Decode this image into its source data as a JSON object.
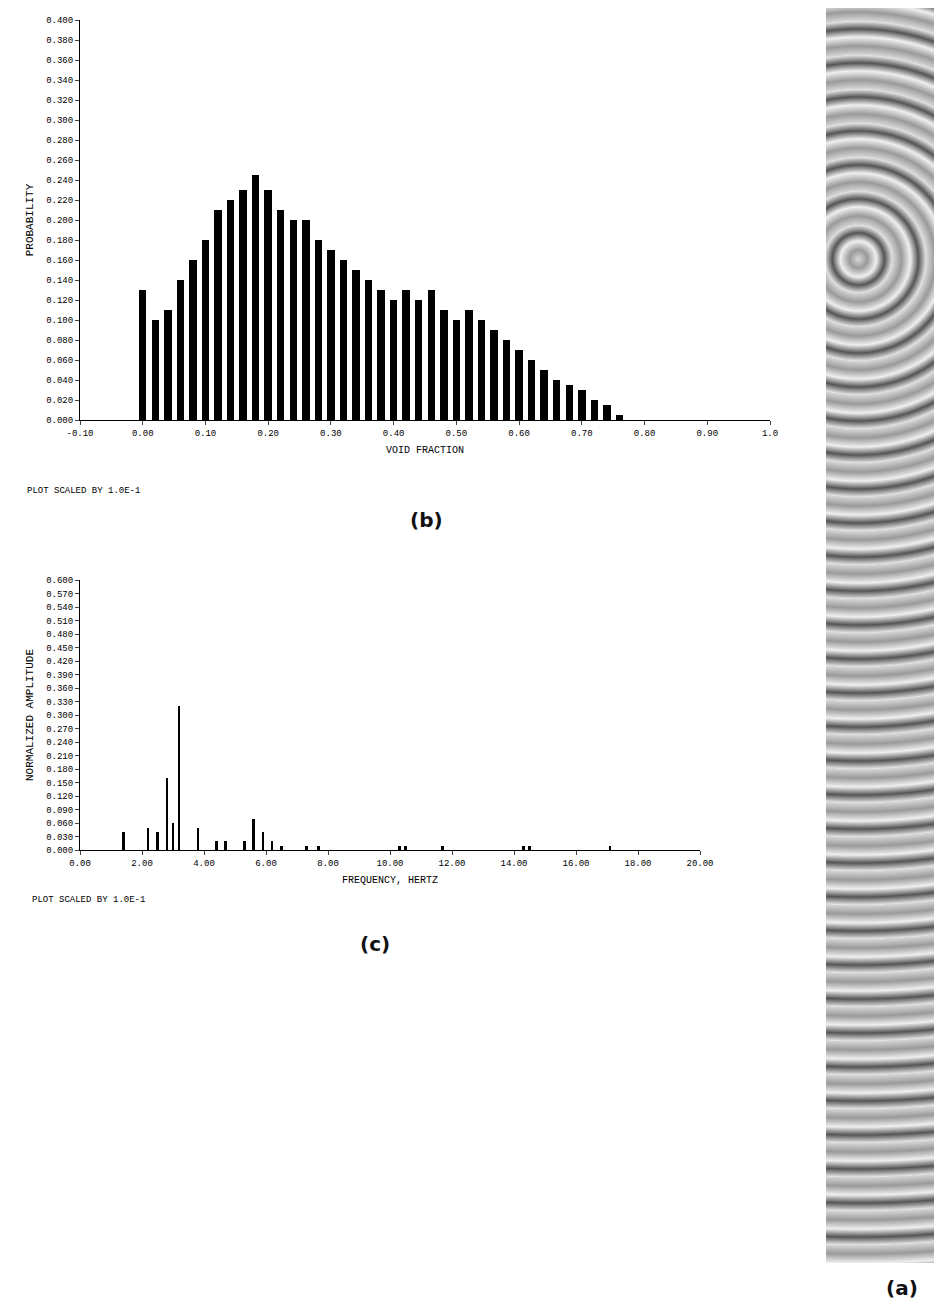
{
  "chart_data": [
    {
      "type": "bar",
      "panel": "(b)",
      "x_label": "VOID FRACTION",
      "y_label": "PROBABILITY",
      "annotations": [
        "PLOT SCALED BY 1.0E-1"
      ],
      "x": [
        0.0,
        0.02,
        0.04,
        0.06,
        0.08,
        0.1,
        0.12,
        0.14,
        0.16,
        0.18,
        0.2,
        0.22,
        0.24,
        0.26,
        0.28,
        0.3,
        0.32,
        0.34,
        0.36,
        0.38,
        0.4,
        0.42,
        0.44,
        0.46,
        0.48,
        0.5,
        0.52,
        0.54,
        0.56,
        0.58,
        0.6,
        0.62,
        0.64,
        0.66,
        0.68,
        0.7,
        0.72,
        0.74,
        0.76
      ],
      "values": [
        0.13,
        0.1,
        0.11,
        0.14,
        0.16,
        0.18,
        0.21,
        0.22,
        0.23,
        0.245,
        0.23,
        0.21,
        0.2,
        0.2,
        0.18,
        0.17,
        0.16,
        0.15,
        0.14,
        0.13,
        0.12,
        0.13,
        0.12,
        0.13,
        0.11,
        0.1,
        0.11,
        0.1,
        0.09,
        0.08,
        0.07,
        0.06,
        0.05,
        0.04,
        0.035,
        0.03,
        0.02,
        0.015,
        0.005
      ],
      "color": "#000000",
      "xlim": [
        -0.1,
        1.0
      ],
      "xticks": [
        {
          "value": -0.1,
          "label": "-0.10"
        },
        {
          "value": 0,
          "label": "0.00"
        },
        {
          "value": 0.1,
          "label": "0.10"
        },
        {
          "value": 0.2,
          "label": "0.20"
        },
        {
          "value": 0.3,
          "label": "0.30"
        },
        {
          "value": 0.4,
          "label": "0.40"
        },
        {
          "value": 0.5,
          "label": "0.50"
        },
        {
          "value": 0.6,
          "label": "0.60"
        },
        {
          "value": 0.7,
          "label": "0.70"
        },
        {
          "value": 0.8,
          "label": "0.80"
        },
        {
          "value": 0.9,
          "label": "0.90"
        },
        {
          "value": 1.0,
          "label": "1.0"
        }
      ],
      "ylim": [
        0,
        0.4
      ],
      "yticks": [
        {
          "value": 0,
          "label": "0.000"
        },
        {
          "value": 0.02,
          "label": "0.020"
        },
        {
          "value": 0.04,
          "label": "0.040"
        },
        {
          "value": 0.06,
          "label": "0.060"
        },
        {
          "value": 0.08,
          "label": "0.080"
        },
        {
          "value": 0.1,
          "label": "0.100"
        },
        {
          "value": 0.12,
          "label": "0.120"
        },
        {
          "value": 0.14,
          "label": "0.140"
        },
        {
          "value": 0.16,
          "label": "0.160"
        },
        {
          "value": 0.18,
          "label": "0.180"
        },
        {
          "value": 0.2,
          "label": "0.200"
        },
        {
          "value": 0.22,
          "label": "0.220"
        },
        {
          "value": 0.24,
          "label": "0.240"
        },
        {
          "value": 0.26,
          "label": "0.260"
        },
        {
          "value": 0.28,
          "label": "0.280"
        },
        {
          "value": 0.3,
          "label": "0.300"
        },
        {
          "value": 0.32,
          "label": "0.320"
        },
        {
          "value": 0.34,
          "label": "0.340"
        },
        {
          "value": 0.36,
          "label": "0.360"
        },
        {
          "value": 0.38,
          "label": "0.380"
        },
        {
          "value": 0.4,
          "label": "0.400"
        }
      ],
      "grid": false
    },
    {
      "type": "bar",
      "panel": "(c)",
      "x_label": "FREQUENCY, HERTZ",
      "y_label": "NORMALIZED AMPLITUDE",
      "annotations": [
        "PLOT SCALED BY 1.0E-1"
      ],
      "x": [
        1.4,
        2.2,
        2.5,
        2.8,
        3.0,
        3.2,
        3.8,
        4.4,
        4.7,
        5.3,
        5.6,
        5.9,
        6.2,
        6.5,
        7.3,
        7.7,
        10.3,
        10.5,
        11.7,
        14.3,
        14.5,
        17.1
      ],
      "values": [
        0.04,
        0.05,
        0.04,
        0.16,
        0.06,
        0.32,
        0.05,
        0.02,
        0.02,
        0.02,
        0.07,
        0.04,
        0.02,
        0.01,
        0.01,
        0.01,
        0.01,
        0.01,
        0.01,
        0.01,
        0.01,
        0.01
      ],
      "color": "#000000",
      "xlim": [
        0,
        20
      ],
      "xticks": [
        {
          "value": 0,
          "label": "0.00"
        },
        {
          "value": 2,
          "label": "2.00"
        },
        {
          "value": 4,
          "label": "4.00"
        },
        {
          "value": 6,
          "label": "6.00"
        },
        {
          "value": 8,
          "label": "8.00"
        },
        {
          "value": 10,
          "label": "10.00"
        },
        {
          "value": 12,
          "label": "12.00"
        },
        {
          "value": 14,
          "label": "14.00"
        },
        {
          "value": 16,
          "label": "16.00"
        },
        {
          "value": 18,
          "label": "18.00"
        },
        {
          "value": 20,
          "label": "20.00"
        }
      ],
      "ylim": [
        0,
        0.6
      ],
      "yticks": [
        {
          "value": 0,
          "label": "0.000"
        },
        {
          "value": 0.03,
          "label": "0.030"
        },
        {
          "value": 0.06,
          "label": "0.060"
        },
        {
          "value": 0.09,
          "label": "0.090"
        },
        {
          "value": 0.12,
          "label": "0.120"
        },
        {
          "value": 0.15,
          "label": "0.150"
        },
        {
          "value": 0.18,
          "label": "0.180"
        },
        {
          "value": 0.21,
          "label": "0.210"
        },
        {
          "value": 0.24,
          "label": "0.240"
        },
        {
          "value": 0.27,
          "label": "0.270"
        },
        {
          "value": 0.3,
          "label": "0.300"
        },
        {
          "value": 0.33,
          "label": "0.330"
        },
        {
          "value": 0.36,
          "label": "0.360"
        },
        {
          "value": 0.39,
          "label": "0.390"
        },
        {
          "value": 0.42,
          "label": "0.420"
        },
        {
          "value": 0.45,
          "label": "0.450"
        },
        {
          "value": 0.48,
          "label": "0.480"
        },
        {
          "value": 0.51,
          "label": "0.510"
        },
        {
          "value": 0.54,
          "label": "0.540"
        },
        {
          "value": 0.57,
          "label": "0.570"
        },
        {
          "value": 0.6,
          "label": "0.600"
        }
      ],
      "grid": false
    }
  ],
  "photo": {
    "label": "(a)"
  }
}
